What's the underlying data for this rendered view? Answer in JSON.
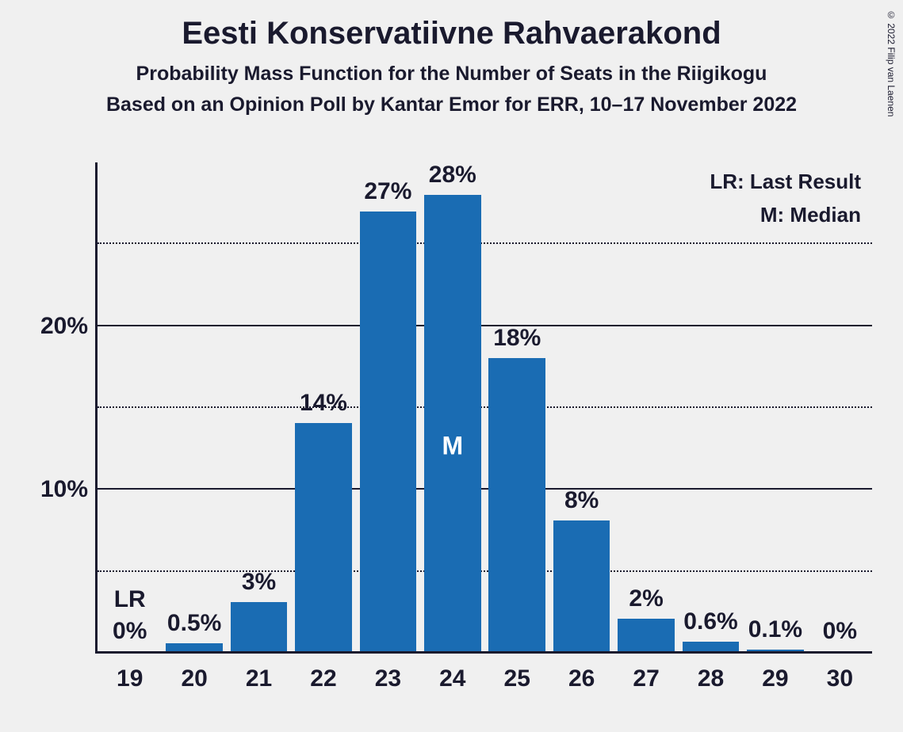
{
  "copyright": "© 2022 Filip van Laenen",
  "header": {
    "title": "Eesti Konservatiivne Rahvaerakond",
    "subtitle1": "Probability Mass Function for the Number of Seats in the Riigikogu",
    "subtitle2": "Based on an Opinion Poll by Kantar Emor for ERR, 10–17 November 2022"
  },
  "legend": {
    "lr": "LR: Last Result",
    "m": "M: Median"
  },
  "chart": {
    "type": "bar",
    "bar_color": "#1a6cb3",
    "background_color": "#f0f0f0",
    "text_color": "#1a1a2e",
    "median_text_color": "#ffffff",
    "y_axis": {
      "max": 30,
      "gridlines": [
        {
          "value": 5,
          "label": "",
          "style": "minor"
        },
        {
          "value": 10,
          "label": "10%",
          "style": "major"
        },
        {
          "value": 15,
          "label": "",
          "style": "minor"
        },
        {
          "value": 20,
          "label": "20%",
          "style": "major"
        },
        {
          "value": 25,
          "label": "",
          "style": "minor"
        }
      ]
    },
    "bars": [
      {
        "x": "19",
        "value": 0,
        "label": "0%",
        "annot": "LR"
      },
      {
        "x": "20",
        "value": 0.5,
        "label": "0.5%",
        "annot": ""
      },
      {
        "x": "21",
        "value": 3,
        "label": "3%",
        "annot": ""
      },
      {
        "x": "22",
        "value": 14,
        "label": "14%",
        "annot": ""
      },
      {
        "x": "23",
        "value": 27,
        "label": "27%",
        "annot": ""
      },
      {
        "x": "24",
        "value": 28,
        "label": "28%",
        "annot": "M"
      },
      {
        "x": "25",
        "value": 18,
        "label": "18%",
        "annot": ""
      },
      {
        "x": "26",
        "value": 8,
        "label": "8%",
        "annot": ""
      },
      {
        "x": "27",
        "value": 2,
        "label": "2%",
        "annot": ""
      },
      {
        "x": "28",
        "value": 0.6,
        "label": "0.6%",
        "annot": ""
      },
      {
        "x": "29",
        "value": 0.1,
        "label": "0.1%",
        "annot": ""
      },
      {
        "x": "30",
        "value": 0,
        "label": "0%",
        "annot": ""
      }
    ]
  }
}
